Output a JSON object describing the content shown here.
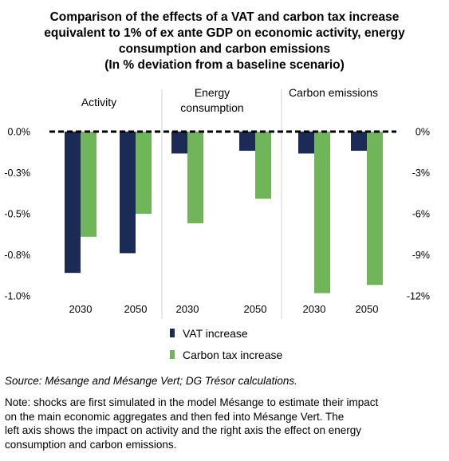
{
  "title": {
    "line1": "Comparison of the effects of a VAT and carbon tax increase",
    "line2": "equivalent to 1% of ex ante GDP on economic activity, energy",
    "line3": "consumption and carbon emissions",
    "line4": "(In % deviation from a baseline scenario)"
  },
  "chart_data": {
    "type": "bar",
    "groups": [
      {
        "label_lines": [
          "Activity"
        ],
        "axis": "left"
      },
      {
        "label_lines": [
          "Energy",
          "consumption"
        ],
        "axis": "right"
      },
      {
        "label_lines": [
          "Carbon emissions"
        ],
        "axis": "right"
      }
    ],
    "categories": [
      "2030",
      "2050",
      "2030",
      "2050",
      "2030",
      "2050"
    ],
    "category_group": [
      0,
      0,
      1,
      1,
      2,
      2
    ],
    "series": [
      {
        "name": "VAT increase",
        "color": "#1c2b55",
        "values": [
          -0.86,
          -0.74,
          -1.6,
          -1.4,
          -1.6,
          -1.4
        ]
      },
      {
        "name": "Carbon tax increase",
        "color": "#70b55a",
        "values": [
          -0.64,
          -0.5,
          -6.7,
          -4.9,
          -11.8,
          -11.2
        ]
      }
    ],
    "y_left": {
      "ylim": [
        -1.0,
        0.0
      ],
      "ticks": [
        0.0,
        -0.25,
        -0.5,
        -0.75,
        -1.0
      ],
      "tick_labels": [
        "0.0%",
        "-0.3%",
        "-0.5%",
        "-0.8%",
        "-1.0%"
      ]
    },
    "y_right": {
      "ylim": [
        -12,
        0
      ],
      "ticks": [
        0,
        -3,
        -6,
        -9,
        -12
      ],
      "tick_labels": [
        "0%",
        "-3%",
        "-6%",
        "-9%",
        "-12%"
      ]
    },
    "zero_line": "dashed",
    "grid": false,
    "legend_position": "bottom-center"
  },
  "source": "Source: Mésange and Mésange Vert; DG Trésor calculations.",
  "note": {
    "line1": "Note: shocks are first simulated in the model Mésange to estimate their impact",
    "line2": "on the main economic aggregates and then fed into Mésange Vert. The",
    "line3": "left axis shows the impact on activity and the right axis the effect on energy",
    "line4": "consumption and carbon emissions."
  }
}
